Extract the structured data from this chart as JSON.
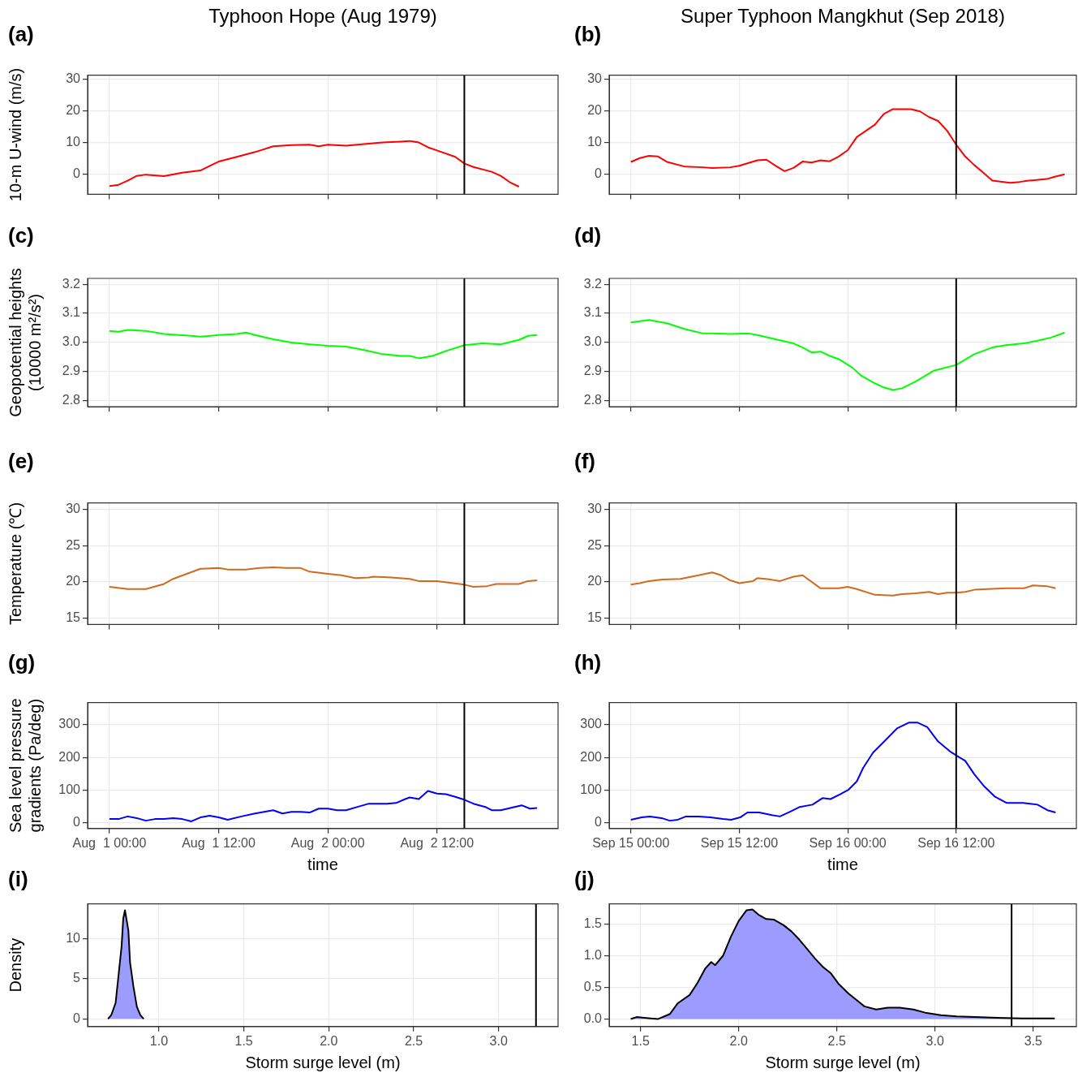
{
  "chart_data": [
    {
      "type": "line",
      "title": "Typhoon Hope (Aug 1979)",
      "annotations": [
        "(a)"
      ],
      "ylabel": "10-m U-wind (m/s)",
      "x": [
        "1979-08-01T00:00",
        "1979-08-01T01:00",
        "1979-08-01T02:00",
        "1979-08-01T03:00",
        "1979-08-01T04:00",
        "1979-08-01T06:00",
        "1979-08-01T08:00",
        "1979-08-01T10:00",
        "1979-08-01T12:00",
        "1979-08-01T14:00",
        "1979-08-01T16:00",
        "1979-08-01T18:00",
        "1979-08-01T20:00",
        "1979-08-01T22:00",
        "1979-08-01T23:00",
        "1979-08-02T00:00",
        "1979-08-02T02:00",
        "1979-08-02T04:00",
        "1979-08-02T06:00",
        "1979-08-02T08:00",
        "1979-08-02T09:00",
        "1979-08-02T10:00",
        "1979-08-02T11:00",
        "1979-08-02T12:00",
        "1979-08-02T14:00",
        "1979-08-02T15:00",
        "1979-08-02T16:00",
        "1979-08-02T18:00",
        "1979-08-02T19:00",
        "1979-08-02T20:00",
        "1979-08-02T21:00"
      ],
      "series": [
        {
          "color": "#ff0000",
          "values": [
            -3.7,
            -3.3,
            -2,
            -0.5,
            -0.1,
            -0.6,
            0.5,
            1.2,
            4,
            5.5,
            7,
            8.8,
            9.2,
            9.3,
            8.8,
            9.3,
            9,
            9.5,
            10,
            10.3,
            10.5,
            10,
            8.5,
            7.5,
            5.5,
            3.4,
            2.3,
            0.8,
            -0.5,
            -2.5,
            -3.9
          ]
        }
      ],
      "xlim": [
        "1979-07-31T21:36",
        "1979-08-03T01:18"
      ],
      "ylim": [
        -6.3,
        31.2
      ],
      "xticks": [
        {
          "value": "1979-08-01T00:00",
          "label": null
        },
        {
          "value": "1979-08-01T12:00",
          "label": null
        },
        {
          "value": "1979-08-02T00:00",
          "label": null
        },
        {
          "value": "1979-08-02T12:00",
          "label": null
        }
      ],
      "yticks": [
        0,
        10,
        20,
        30
      ],
      "tick_labels": "y",
      "grid": true,
      "ref_lines": [
        {
          "axis": "x",
          "value": "1979-08-02T15:00"
        }
      ]
    },
    {
      "type": "line",
      "title": "Super Typhoon Mangkhut (Sep 2018)",
      "annotations": [
        "(b)"
      ],
      "x": [
        "2018-09-15T00:00",
        "2018-09-15T01:00",
        "2018-09-15T02:00",
        "2018-09-15T03:00",
        "2018-09-15T04:00",
        "2018-09-15T06:00",
        "2018-09-15T08:00",
        "2018-09-15T09:00",
        "2018-09-15T11:00",
        "2018-09-15T12:00",
        "2018-09-15T14:00",
        "2018-09-15T15:00",
        "2018-09-15T16:00",
        "2018-09-15T17:00",
        "2018-09-15T18:00",
        "2018-09-15T19:00",
        "2018-09-15T20:00",
        "2018-09-15T21:00",
        "2018-09-15T22:00",
        "2018-09-15T23:00",
        "2018-09-16T00:00",
        "2018-09-16T01:00",
        "2018-09-16T03:00",
        "2018-09-16T04:00",
        "2018-09-16T05:00",
        "2018-09-16T07:00",
        "2018-09-16T08:00",
        "2018-09-16T09:00",
        "2018-09-16T10:00",
        "2018-09-16T11:00",
        "2018-09-16T12:00",
        "2018-09-16T13:00",
        "2018-09-16T14:00",
        "2018-09-16T15:00",
        "2018-09-16T16:00",
        "2018-09-16T18:00",
        "2018-09-16T19:00",
        "2018-09-16T20:00",
        "2018-09-16T22:00",
        "2018-09-16T23:00",
        "2018-09-17T00:00"
      ],
      "series": [
        {
          "color": "#ff0000",
          "values": [
            3.9,
            5.1,
            5.8,
            5.6,
            3.9,
            2.4,
            2.2,
            2,
            2.2,
            2.7,
            4.4,
            4.6,
            2.7,
            1,
            2,
            4,
            3.7,
            4.4,
            4.1,
            5.6,
            7.6,
            11.7,
            15.6,
            19,
            20.5,
            20.5,
            19.8,
            18,
            16.8,
            13.7,
            9.3,
            5.6,
            2.9,
            0.5,
            -2,
            -2.7,
            -2.4,
            -2,
            -1.5,
            -0.7,
            0
          ]
        }
      ],
      "xlim": [
        "2018-09-14T21:36",
        "2018-09-17T01:18"
      ],
      "ylim": [
        -6.3,
        31.2
      ],
      "xticks": [
        {
          "value": "2018-09-15T00:00",
          "label": null
        },
        {
          "value": "2018-09-15T12:00",
          "label": null
        },
        {
          "value": "2018-09-16T00:00",
          "label": null
        },
        {
          "value": "2018-09-16T12:00",
          "label": null
        }
      ],
      "yticks": [
        0,
        10,
        20,
        30
      ],
      "tick_labels": "y",
      "grid": true,
      "ref_lines": [
        {
          "axis": "x",
          "value": "2018-09-16T12:00"
        }
      ]
    },
    {
      "type": "line",
      "annotations": [
        "(c)"
      ],
      "ylabel": "Geopotential heights\n(10000 m²/s²)",
      "x": [
        "1979-08-01T00:00",
        "1979-08-01T01:00",
        "1979-08-01T02:00",
        "1979-08-01T04:00",
        "1979-08-01T06:00",
        "1979-08-01T09:00",
        "1979-08-01T10:00",
        "1979-08-01T12:00",
        "1979-08-01T14:00",
        "1979-08-01T15:00",
        "1979-08-01T16:00",
        "1979-08-01T18:00",
        "1979-08-01T20:00",
        "1979-08-01T22:00",
        "1979-08-02T00:00",
        "1979-08-02T02:00",
        "1979-08-02T04:00",
        "1979-08-02T06:00",
        "1979-08-02T08:00",
        "1979-08-02T09:00",
        "1979-08-02T10:00",
        "1979-08-02T11:30",
        "1979-08-02T13:00",
        "1979-08-02T15:00",
        "1979-08-02T17:00",
        "1979-08-02T19:00",
        "1979-08-02T21:00",
        "1979-08-02T22:00",
        "1979-08-02T23:00"
      ],
      "series": [
        {
          "color": "#00ff00",
          "values": [
            3.04,
            3.037,
            3.043,
            3.04,
            3.029,
            3.023,
            3.02,
            3.026,
            3.029,
            3.034,
            3.026,
            3.011,
            3.0,
            2.994,
            2.989,
            2.986,
            2.974,
            2.96,
            2.954,
            2.954,
            2.946,
            2.954,
            2.971,
            2.991,
            2.997,
            2.994,
            3.009,
            3.023,
            3.026
          ]
        }
      ],
      "xlim": [
        "1979-07-31T21:36",
        "1979-08-03T01:18"
      ],
      "ylim": [
        2.78,
        3.22
      ],
      "xticks": [
        {
          "value": "1979-08-01T00:00",
          "label": null
        },
        {
          "value": "1979-08-01T12:00",
          "label": null
        },
        {
          "value": "1979-08-02T00:00",
          "label": null
        },
        {
          "value": "1979-08-02T12:00",
          "label": null
        }
      ],
      "yticks": [
        2.8,
        2.9,
        {
          "value": 3,
          "label": "3.0"
        },
        3.1,
        3.2
      ],
      "tick_labels": "y",
      "grid": true,
      "ref_lines": [
        {
          "axis": "x",
          "value": "1979-08-02T15:00"
        }
      ]
    },
    {
      "type": "line",
      "annotations": [
        "(d)"
      ],
      "x": [
        "2018-09-15T00:00",
        "2018-09-15T02:00",
        "2018-09-15T04:00",
        "2018-09-15T06:00",
        "2018-09-15T08:00",
        "2018-09-15T09:00",
        "2018-09-15T11:00",
        "2018-09-15T13:00",
        "2018-09-15T14:00",
        "2018-09-15T16:00",
        "2018-09-15T18:00",
        "2018-09-15T19:00",
        "2018-09-15T20:00",
        "2018-09-15T21:00",
        "2018-09-15T22:00",
        "2018-09-15T23:00",
        "2018-09-16T00:30",
        "2018-09-16T01:30",
        "2018-09-16T03:00",
        "2018-09-16T04:00",
        "2018-09-16T05:00",
        "2018-09-16T06:00",
        "2018-09-16T07:30",
        "2018-09-16T09:30",
        "2018-09-16T12:00",
        "2018-09-16T14:00",
        "2018-09-16T16:00",
        "2018-09-16T17:30",
        "2018-09-16T19:30",
        "2018-09-16T21:00",
        "2018-09-16T22:30",
        "2018-09-17T00:00"
      ],
      "series": [
        {
          "color": "#00ff00",
          "values": [
            3.069,
            3.077,
            3.066,
            3.046,
            3.031,
            3.031,
            3.029,
            3.031,
            3.026,
            3.011,
            2.997,
            2.983,
            2.966,
            2.969,
            2.954,
            2.943,
            2.914,
            2.886,
            2.86,
            2.846,
            2.837,
            2.843,
            2.866,
            2.903,
            2.923,
            2.96,
            2.983,
            2.991,
            2.997,
            3.006,
            3.017,
            3.034
          ]
        }
      ],
      "xlim": [
        "2018-09-14T21:36",
        "2018-09-17T01:18"
      ],
      "ylim": [
        2.78,
        3.22
      ],
      "xticks": [
        {
          "value": "2018-09-15T00:00",
          "label": null
        },
        {
          "value": "2018-09-15T12:00",
          "label": null
        },
        {
          "value": "2018-09-16T00:00",
          "label": null
        },
        {
          "value": "2018-09-16T12:00",
          "label": null
        }
      ],
      "yticks": [
        2.8,
        2.9,
        {
          "value": 3,
          "label": "3.0"
        },
        3.1,
        3.2
      ],
      "tick_labels": "y",
      "grid": true,
      "ref_lines": [
        {
          "axis": "x",
          "value": "2018-09-16T12:00"
        }
      ]
    },
    {
      "type": "line",
      "annotations": [
        "(e)"
      ],
      "ylabel": "Temperature (℃)",
      "x": [
        "1979-08-01T00:00",
        "1979-08-01T02:00",
        "1979-08-01T04:00",
        "1979-08-01T06:00",
        "1979-08-01T07:00",
        "1979-08-01T08:30",
        "1979-08-01T10:00",
        "1979-08-01T12:00",
        "1979-08-01T13:00",
        "1979-08-01T15:00",
        "1979-08-01T16:30",
        "1979-08-01T18:00",
        "1979-08-01T19:30",
        "1979-08-01T21:00",
        "1979-08-01T22:00",
        "1979-08-02T00:00",
        "1979-08-02T01:30",
        "1979-08-02T03:00",
        "1979-08-02T04:30",
        "1979-08-02T05:00",
        "1979-08-02T07:00",
        "1979-08-02T09:00",
        "1979-08-02T10:00",
        "1979-08-02T12:00",
        "1979-08-02T15:00",
        "1979-08-02T16:00",
        "1979-08-02T17:30",
        "1979-08-02T18:30",
        "1979-08-02T21:00",
        "1979-08-02T22:00",
        "1979-08-02T23:00"
      ],
      "series": [
        {
          "color": "#d2691e",
          "values": [
            19.3,
            19.0,
            19.0,
            19.7,
            20.4,
            21.1,
            21.8,
            21.9,
            21.7,
            21.7,
            21.9,
            22.0,
            21.9,
            21.9,
            21.4,
            21.1,
            20.9,
            20.5,
            20.6,
            20.7,
            20.6,
            20.4,
            20.1,
            20.1,
            19.6,
            19.3,
            19.4,
            19.7,
            19.7,
            20.1,
            20.2
          ]
        }
      ],
      "xlim": [
        "1979-07-31T21:36",
        "1979-08-03T01:18"
      ],
      "ylim": [
        14.1,
        30.9
      ],
      "xticks": [
        {
          "value": "1979-08-01T00:00",
          "label": null
        },
        {
          "value": "1979-08-01T12:00",
          "label": null
        },
        {
          "value": "1979-08-02T00:00",
          "label": null
        },
        {
          "value": "1979-08-02T12:00",
          "label": null
        }
      ],
      "yticks": [
        15,
        20,
        25,
        30
      ],
      "tick_labels": "y",
      "grid": true,
      "ref_lines": [
        {
          "axis": "x",
          "value": "1979-08-02T15:00"
        }
      ]
    },
    {
      "type": "line",
      "annotations": [
        "(f)"
      ],
      "x": [
        "2018-09-15T00:00",
        "2018-09-15T01:00",
        "2018-09-15T02:00",
        "2018-09-15T03:30",
        "2018-09-15T05:30",
        "2018-09-15T07:30",
        "2018-09-15T09:00",
        "2018-09-15T10:00",
        "2018-09-15T11:00",
        "2018-09-15T12:00",
        "2018-09-15T13:30",
        "2018-09-15T14:00",
        "2018-09-15T15:30",
        "2018-09-15T16:30",
        "2018-09-15T18:00",
        "2018-09-15T19:00",
        "2018-09-15T21:00",
        "2018-09-15T23:00",
        "2018-09-16T00:00",
        "2018-09-16T01:00",
        "2018-09-16T03:00",
        "2018-09-16T05:00",
        "2018-09-16T06:00",
        "2018-09-16T07:30",
        "2018-09-16T09:00",
        "2018-09-16T10:00",
        "2018-09-16T11:00",
        "2018-09-16T12:00",
        "2018-09-16T13:00",
        "2018-09-16T14:00",
        "2018-09-16T15:30",
        "2018-09-16T17:30",
        "2018-09-16T19:30",
        "2018-09-16T20:30",
        "2018-09-16T22:00",
        "2018-09-16T23:00"
      ],
      "series": [
        {
          "color": "#d2691e",
          "values": [
            19.6,
            19.8,
            20.1,
            20.3,
            20.4,
            20.9,
            21.3,
            20.9,
            20.2,
            19.8,
            20.1,
            20.5,
            20.3,
            20.1,
            20.7,
            20.9,
            19.1,
            19.1,
            19.3,
            19.0,
            18.2,
            18.1,
            18.3,
            18.4,
            18.6,
            18.3,
            18.5,
            18.5,
            18.6,
            18.9,
            19.0,
            19.1,
            19.1,
            19.5,
            19.4,
            19.1
          ]
        }
      ],
      "xlim": [
        "2018-09-14T21:36",
        "2018-09-17T01:18"
      ],
      "ylim": [
        14.1,
        30.9
      ],
      "xticks": [
        {
          "value": "2018-09-15T00:00",
          "label": null
        },
        {
          "value": "2018-09-15T12:00",
          "label": null
        },
        {
          "value": "2018-09-16T00:00",
          "label": null
        },
        {
          "value": "2018-09-16T12:00",
          "label": null
        }
      ],
      "yticks": [
        15,
        20,
        25,
        30
      ],
      "tick_labels": "y",
      "grid": true,
      "ref_lines": [
        {
          "axis": "x",
          "value": "2018-09-16T12:00"
        }
      ]
    },
    {
      "type": "line",
      "annotations": [
        "(g)"
      ],
      "ylabel": "Sea level pressure\ngradients (Pa/deg)",
      "xlabel": "time",
      "x": [
        "1979-08-01T00:00",
        "1979-08-01T01:00",
        "1979-08-01T02:00",
        "1979-08-01T03:00",
        "1979-08-01T04:00",
        "1979-08-01T05:00",
        "1979-08-01T06:00",
        "1979-08-01T07:00",
        "1979-08-01T08:00",
        "1979-08-01T09:00",
        "1979-08-01T10:00",
        "1979-08-01T11:00",
        "1979-08-01T12:00",
        "1979-08-01T13:00",
        "1979-08-01T14:30",
        "1979-08-01T16:00",
        "1979-08-01T18:00",
        "1979-08-01T19:00",
        "1979-08-01T20:00",
        "1979-08-01T21:00",
        "1979-08-01T22:00",
        "1979-08-01T23:00",
        "1979-08-02T00:00",
        "1979-08-02T01:00",
        "1979-08-02T02:00",
        "1979-08-02T03:30",
        "1979-08-02T04:30",
        "1979-08-02T06:30",
        "1979-08-02T07:30",
        "1979-08-02T08:30",
        "1979-08-02T09:00",
        "1979-08-02T10:00",
        "1979-08-02T11:00",
        "1979-08-02T12:00",
        "1979-08-02T13:00",
        "1979-08-02T14:00",
        "1979-08-02T15:00",
        "1979-08-02T16:00",
        "1979-08-02T17:18",
        "1979-08-02T18:00",
        "1979-08-02T19:00",
        "1979-08-02T21:18",
        "1979-08-02T22:12",
        "1979-08-02T23:00"
      ],
      "series": [
        {
          "color": "#0000ff",
          "values": [
            12,
            12,
            20,
            15,
            7,
            12,
            12,
            15,
            12,
            5,
            17,
            22,
            17,
            10,
            20,
            29,
            39,
            29,
            34,
            34,
            32,
            44,
            44,
            39,
            39,
            51,
            59,
            59,
            61,
            73,
            78,
            73,
            98,
            90,
            88,
            80,
            71,
            59,
            49,
            39,
            39,
            54,
            44,
            46
          ]
        }
      ],
      "xlim": [
        "1979-07-31T21:36",
        "1979-08-03T01:18"
      ],
      "ylim": [
        -17,
        368
      ],
      "xticks": [
        {
          "value": "1979-08-01T00:00",
          "label": "Aug  1 00:00"
        },
        {
          "value": "1979-08-01T12:00",
          "label": "Aug  1 12:00"
        },
        {
          "value": "1979-08-02T00:00",
          "label": "Aug  2 00:00"
        },
        {
          "value": "1979-08-02T12:00",
          "label": "Aug  2 12:00"
        }
      ],
      "yticks": [
        0,
        100,
        200,
        300
      ],
      "grid": true,
      "ref_lines": [
        {
          "axis": "x",
          "value": "1979-08-02T15:00"
        }
      ]
    },
    {
      "type": "line",
      "annotations": [
        "(h)"
      ],
      "xlabel": "time",
      "x": [
        "2018-09-15T00:00",
        "2018-09-15T01:12",
        "2018-09-15T02:06",
        "2018-09-15T03:24",
        "2018-09-15T04:18",
        "2018-09-15T05:12",
        "2018-09-15T06:06",
        "2018-09-15T07:30",
        "2018-09-15T08:48",
        "2018-09-15T10:12",
        "2018-09-15T11:06",
        "2018-09-15T12:06",
        "2018-09-15T12:54",
        "2018-09-15T14:12",
        "2018-09-15T15:36",
        "2018-09-15T16:30",
        "2018-09-15T17:48",
        "2018-09-15T18:42",
        "2018-09-15T20:06",
        "2018-09-15T21:12",
        "2018-09-15T22:06",
        "2018-09-15T23:12",
        "2018-09-16T00:06",
        "2018-09-16T01:00",
        "2018-09-16T01:42",
        "2018-09-16T02:48",
        "2018-09-16T04:06",
        "2018-09-16T05:30",
        "2018-09-16T06:48",
        "2018-09-16T07:42",
        "2018-09-16T08:48",
        "2018-09-16T10:00",
        "2018-09-16T11:24",
        "2018-09-16T12:06",
        "2018-09-16T13:00",
        "2018-09-16T14:00",
        "2018-09-16T15:06",
        "2018-09-16T16:18",
        "2018-09-16T17:36",
        "2018-09-16T19:24",
        "2018-09-16T21:00",
        "2018-09-16T22:06",
        "2018-09-16T23:00"
      ],
      "series": [
        {
          "color": "#0000ff",
          "values": [
            10,
            17,
            20,
            15,
            7,
            10,
            20,
            20,
            17,
            12,
            10,
            17,
            32,
            32,
            24,
            20,
            37,
            49,
            56,
            76,
            73,
            88,
            102,
            127,
            168,
            215,
            251,
            290,
            307,
            307,
            293,
            249,
            217,
            205,
            190,
            149,
            112,
            80,
            61,
            61,
            56,
            39,
            32
          ]
        }
      ],
      "xlim": [
        "2018-09-14T21:36",
        "2018-09-17T01:18"
      ],
      "ylim": [
        -17,
        368
      ],
      "xticks": [
        {
          "value": "2018-09-15T00:00",
          "label": "Sep 15 00:00"
        },
        {
          "value": "2018-09-15T12:00",
          "label": "Sep 15 12:00"
        },
        {
          "value": "2018-09-16T00:00",
          "label": "Sep 16 00:00"
        },
        {
          "value": "2018-09-16T12:00",
          "label": "Sep 16 12:00"
        }
      ],
      "yticks": [
        0,
        100,
        200,
        300
      ],
      "grid": true,
      "ref_lines": [
        {
          "axis": "x",
          "value": "2018-09-16T12:00"
        }
      ]
    },
    {
      "type": "area",
      "annotations": [
        "(i)"
      ],
      "ylabel": "Density",
      "xlabel": "Storm surge level (m)",
      "x": [
        0.7,
        0.72,
        0.745,
        0.76,
        0.78,
        0.79,
        0.8,
        0.82,
        0.83,
        0.85,
        0.87,
        0.89,
        0.91
      ],
      "series": [
        {
          "color": "#9c9cff",
          "values": [
            0,
            0.5,
            2,
            5,
            9,
            12.5,
            13.5,
            11,
            7,
            4,
            1.5,
            0.5,
            0
          ]
        }
      ],
      "xlim": [
        0.58,
        3.35
      ],
      "ylim": [
        -0.96,
        14.3
      ],
      "xticks": [
        {
          "value": 1,
          "label": "1.0"
        },
        1.5,
        {
          "value": 2,
          "label": "2.0"
        },
        2.5,
        {
          "value": 3,
          "label": "3.0"
        }
      ],
      "yticks": [
        0,
        5,
        10
      ],
      "grid": true,
      "ref_lines": [
        {
          "axis": "x",
          "value": 3.22
        }
      ]
    },
    {
      "type": "area",
      "annotations": [
        "(j)"
      ],
      "xlabel": "Storm surge level (m)",
      "x": [
        1.45,
        1.48,
        1.55,
        1.59,
        1.65,
        1.69,
        1.75,
        1.79,
        1.83,
        1.86,
        1.88,
        1.92,
        1.96,
        2.0,
        2.04,
        2.07,
        2.1,
        2.14,
        2.18,
        2.23,
        2.27,
        2.31,
        2.35,
        2.39,
        2.43,
        2.47,
        2.51,
        2.56,
        2.6,
        2.64,
        2.7,
        2.76,
        2.82,
        2.89,
        2.95,
        3.03,
        3.11,
        3.2,
        3.32,
        3.44,
        3.61
      ],
      "series": [
        {
          "color": "#9c9cff",
          "values": [
            0,
            0.03,
            0.01,
            0,
            0.08,
            0.25,
            0.38,
            0.57,
            0.8,
            0.9,
            0.85,
            1.0,
            1.3,
            1.55,
            1.72,
            1.73,
            1.65,
            1.58,
            1.57,
            1.48,
            1.38,
            1.25,
            1.1,
            0.95,
            0.82,
            0.72,
            0.55,
            0.4,
            0.3,
            0.2,
            0.15,
            0.18,
            0.18,
            0.15,
            0.1,
            0.06,
            0.04,
            0.03,
            0.02,
            0.01,
            0.01
          ]
        }
      ],
      "xlim": [
        1.34,
        3.72
      ],
      "ylim": [
        -0.12,
        1.82
      ],
      "xticks": [
        1.5,
        {
          "value": 2,
          "label": "2.0"
        },
        2.5,
        {
          "value": 3,
          "label": "3.0"
        },
        3.5
      ],
      "yticks": [
        {
          "value": 0,
          "label": "0.0"
        },
        0.5,
        {
          "value": 1,
          "label": "1.0"
        },
        1.5
      ],
      "grid": true,
      "ref_lines": [
        {
          "axis": "x",
          "value": 3.39
        }
      ]
    }
  ]
}
